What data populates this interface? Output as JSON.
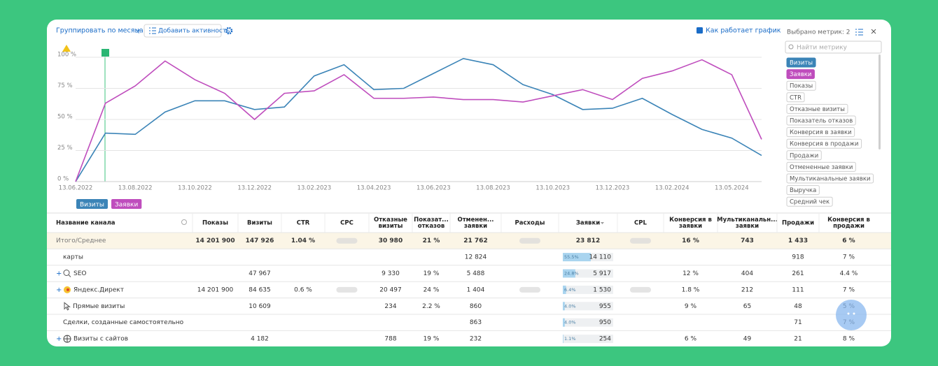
{
  "toolbar": {
    "group_by": "Группировать по месяцам",
    "add_activity": "Добавить активность",
    "how_it_works": "Как работает график"
  },
  "chart_data": {
    "type": "line",
    "categories": [
      "13.06.2022",
      null,
      "13.08.2022",
      null,
      "13.10.2022",
      null,
      "13.12.2022",
      null,
      "13.02.2023",
      null,
      "13.04.2023",
      null,
      "13.06.2023",
      null,
      "13.08.2023",
      null,
      "13.10.2023",
      null,
      "13.12.2023",
      null,
      "13.02.2024",
      null,
      "13.05.2024",
      null
    ],
    "ylim": [
      0,
      100
    ],
    "yticks": [
      {
        "value": 0,
        "label": "0 %"
      },
      {
        "value": 25,
        "label": "25 %"
      },
      {
        "value": 50,
        "label": "50 %"
      },
      {
        "value": 75,
        "label": "75 %"
      },
      {
        "value": 100,
        "label": "100 %"
      }
    ],
    "grid": true,
    "series": [
      {
        "name": "Визиты",
        "color": "#3b84b7",
        "values": [
          0,
          39,
          38,
          56,
          65,
          65,
          58,
          60,
          85,
          94,
          74,
          75,
          87,
          99,
          94,
          78,
          70,
          58,
          59,
          67,
          54,
          42,
          35,
          21
        ]
      },
      {
        "name": "Заявки",
        "color": "#bf4dbd",
        "values": [
          0,
          63,
          77,
          97,
          82,
          71,
          50,
          71,
          73,
          86,
          67,
          67,
          68,
          66,
          66,
          64,
          69,
          74,
          66,
          83,
          89,
          98,
          86,
          34
        ]
      }
    ]
  },
  "metrics_panel": {
    "title": "Выбрано метрик: 2",
    "search_placeholder": "Найти метрику",
    "metrics": [
      {
        "label": "Визиты",
        "selected": true
      },
      {
        "label": "Заявки",
        "selected": true
      },
      {
        "label": "Показы",
        "selected": false
      },
      {
        "label": "CTR",
        "selected": false
      },
      {
        "label": "Отказные визиты",
        "selected": false
      },
      {
        "label": "Показатель отказов",
        "selected": false
      },
      {
        "label": "Конверсия в заявки",
        "selected": false
      },
      {
        "label": "Конверсия в продажи",
        "selected": false
      },
      {
        "label": "Продажи",
        "selected": false
      },
      {
        "label": "Отмененные заявки",
        "selected": false
      },
      {
        "label": "Мультиканальные заявки",
        "selected": false
      },
      {
        "label": "Выручка",
        "selected": false
      },
      {
        "label": "Средний чек",
        "selected": false
      }
    ]
  },
  "table": {
    "columns": [
      [
        "Название канала"
      ],
      [
        "Показы"
      ],
      [
        "Визиты"
      ],
      [
        "CTR"
      ],
      [
        "CPC"
      ],
      [
        "Отказные",
        "визиты"
      ],
      [
        "Показат...",
        "отказов"
      ],
      [
        "Отменен...",
        "заявки"
      ],
      [
        "Расходы"
      ],
      [
        "Заявки"
      ],
      [
        "CPL"
      ],
      [
        "Конверсия в",
        "заявки"
      ],
      [
        "Мультиканальн...",
        "заявки"
      ],
      [
        "Продажи"
      ],
      [
        "Конверсия в",
        "продажи"
      ]
    ],
    "rows": [
      {
        "name": "Итого/Среднее",
        "cells": [
          "14 201 900",
          "147 926",
          "1.04 %",
          null,
          "30 980",
          "21 %",
          "21 762",
          null,
          "23 812",
          null,
          "16 %",
          "743",
          "1 433",
          "6 %"
        ]
      },
      {
        "name": "карты",
        "cells": [
          null,
          null,
          null,
          null,
          null,
          null,
          "12 824",
          null,
          {
            "value": "14 110",
            "share": {
              "value": 55.5,
              "label": "55.5%"
            }
          },
          null,
          null,
          null,
          "918",
          "7 %"
        ]
      },
      {
        "name": "SEO",
        "cells": [
          null,
          "47 967",
          null,
          null,
          "9 330",
          "19 %",
          "5 488",
          null,
          {
            "value": "5 917",
            "share": {
              "value": 24.8,
              "label": "24.8%"
            }
          },
          null,
          "12 %",
          "404",
          "261",
          "4.4 %"
        ]
      },
      {
        "name": "Яндекс.Директ",
        "cells": [
          "14 201 900",
          "84 635",
          "0.6 %",
          null,
          "20 497",
          "24 %",
          "1 404",
          null,
          {
            "value": "1 530",
            "share": {
              "value": 6.4,
              "label": "6.4%"
            }
          },
          null,
          "1.8 %",
          "212",
          "111",
          "7 %"
        ]
      },
      {
        "name": "Прямые визиты",
        "cells": [
          null,
          "10 609",
          null,
          null,
          "234",
          "2.2 %",
          "860",
          null,
          {
            "value": "955",
            "share": {
              "value": 4.0,
              "label": "4.0%"
            }
          },
          null,
          "9 %",
          "65",
          "48",
          "5 %"
        ]
      },
      {
        "name": "Сделки, созданные самостоятельно",
        "cells": [
          null,
          null,
          null,
          null,
          null,
          null,
          "863",
          null,
          {
            "value": "950",
            "share": {
              "value": 4.0,
              "label": "4.0%"
            }
          },
          null,
          null,
          null,
          "71",
          "7 %"
        ]
      },
      {
        "name": "Визиты с сайтов",
        "cells": [
          null,
          "4 182",
          null,
          null,
          "788",
          "19 %",
          "232",
          null,
          {
            "value": "254",
            "share": {
              "value": 1.1,
              "label": "1.1%"
            }
          },
          null,
          "6 %",
          "49",
          "21",
          "8 %"
        ]
      }
    ]
  }
}
